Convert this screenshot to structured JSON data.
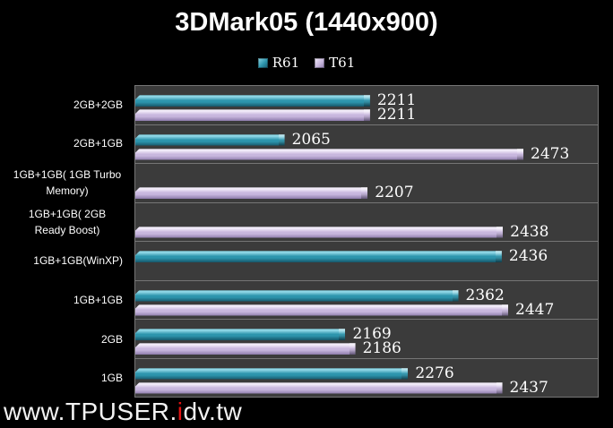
{
  "title": "3DMark05 (1440x900)",
  "legend": [
    {
      "name": "R61"
    },
    {
      "name": "T61"
    }
  ],
  "watermark": {
    "prefix": "www.TPUSER.",
    "highlight": "i",
    "suffix": "dv.tw"
  },
  "colors": {
    "background": "#000000",
    "plot_background": "#3b3b3b",
    "separator": "#757575",
    "text": "#ffffff",
    "r61_light": "#8fd7e6",
    "r61_main": "#2d95ad",
    "r61_dark": "#16576a",
    "t61_light": "#f2ecf9",
    "t61_main": "#c8b7de",
    "t61_dark": "#8d7bab",
    "watermark_red": "#e31212"
  },
  "chart_data": {
    "type": "bar",
    "orientation": "horizontal",
    "title": "3DMark05 (1440x900)",
    "categories": [
      "2GB+2GB",
      "2GB+1GB",
      "1GB+1GB( 1GB Turbo Memory)",
      "1GB+1GB( 2GB Ready Boost)",
      "1GB+1GB(WinXP)",
      "1GB+1GB",
      "2GB",
      "1GB"
    ],
    "series": [
      {
        "name": "R61",
        "values": [
          2211,
          2065,
          null,
          null,
          2436,
          2362,
          2169,
          2276
        ]
      },
      {
        "name": "T61",
        "values": [
          2211,
          2473,
          2207,
          2438,
          null,
          2447,
          2186,
          2437
        ]
      }
    ],
    "xlim": [
      1810,
      2600
    ],
    "xlabel": "",
    "ylabel": "",
    "grid": "category-separators-only",
    "legend_position": "top",
    "data_labels": true,
    "plot_area_background": "#3b3b3b",
    "page_background": "#000000"
  }
}
